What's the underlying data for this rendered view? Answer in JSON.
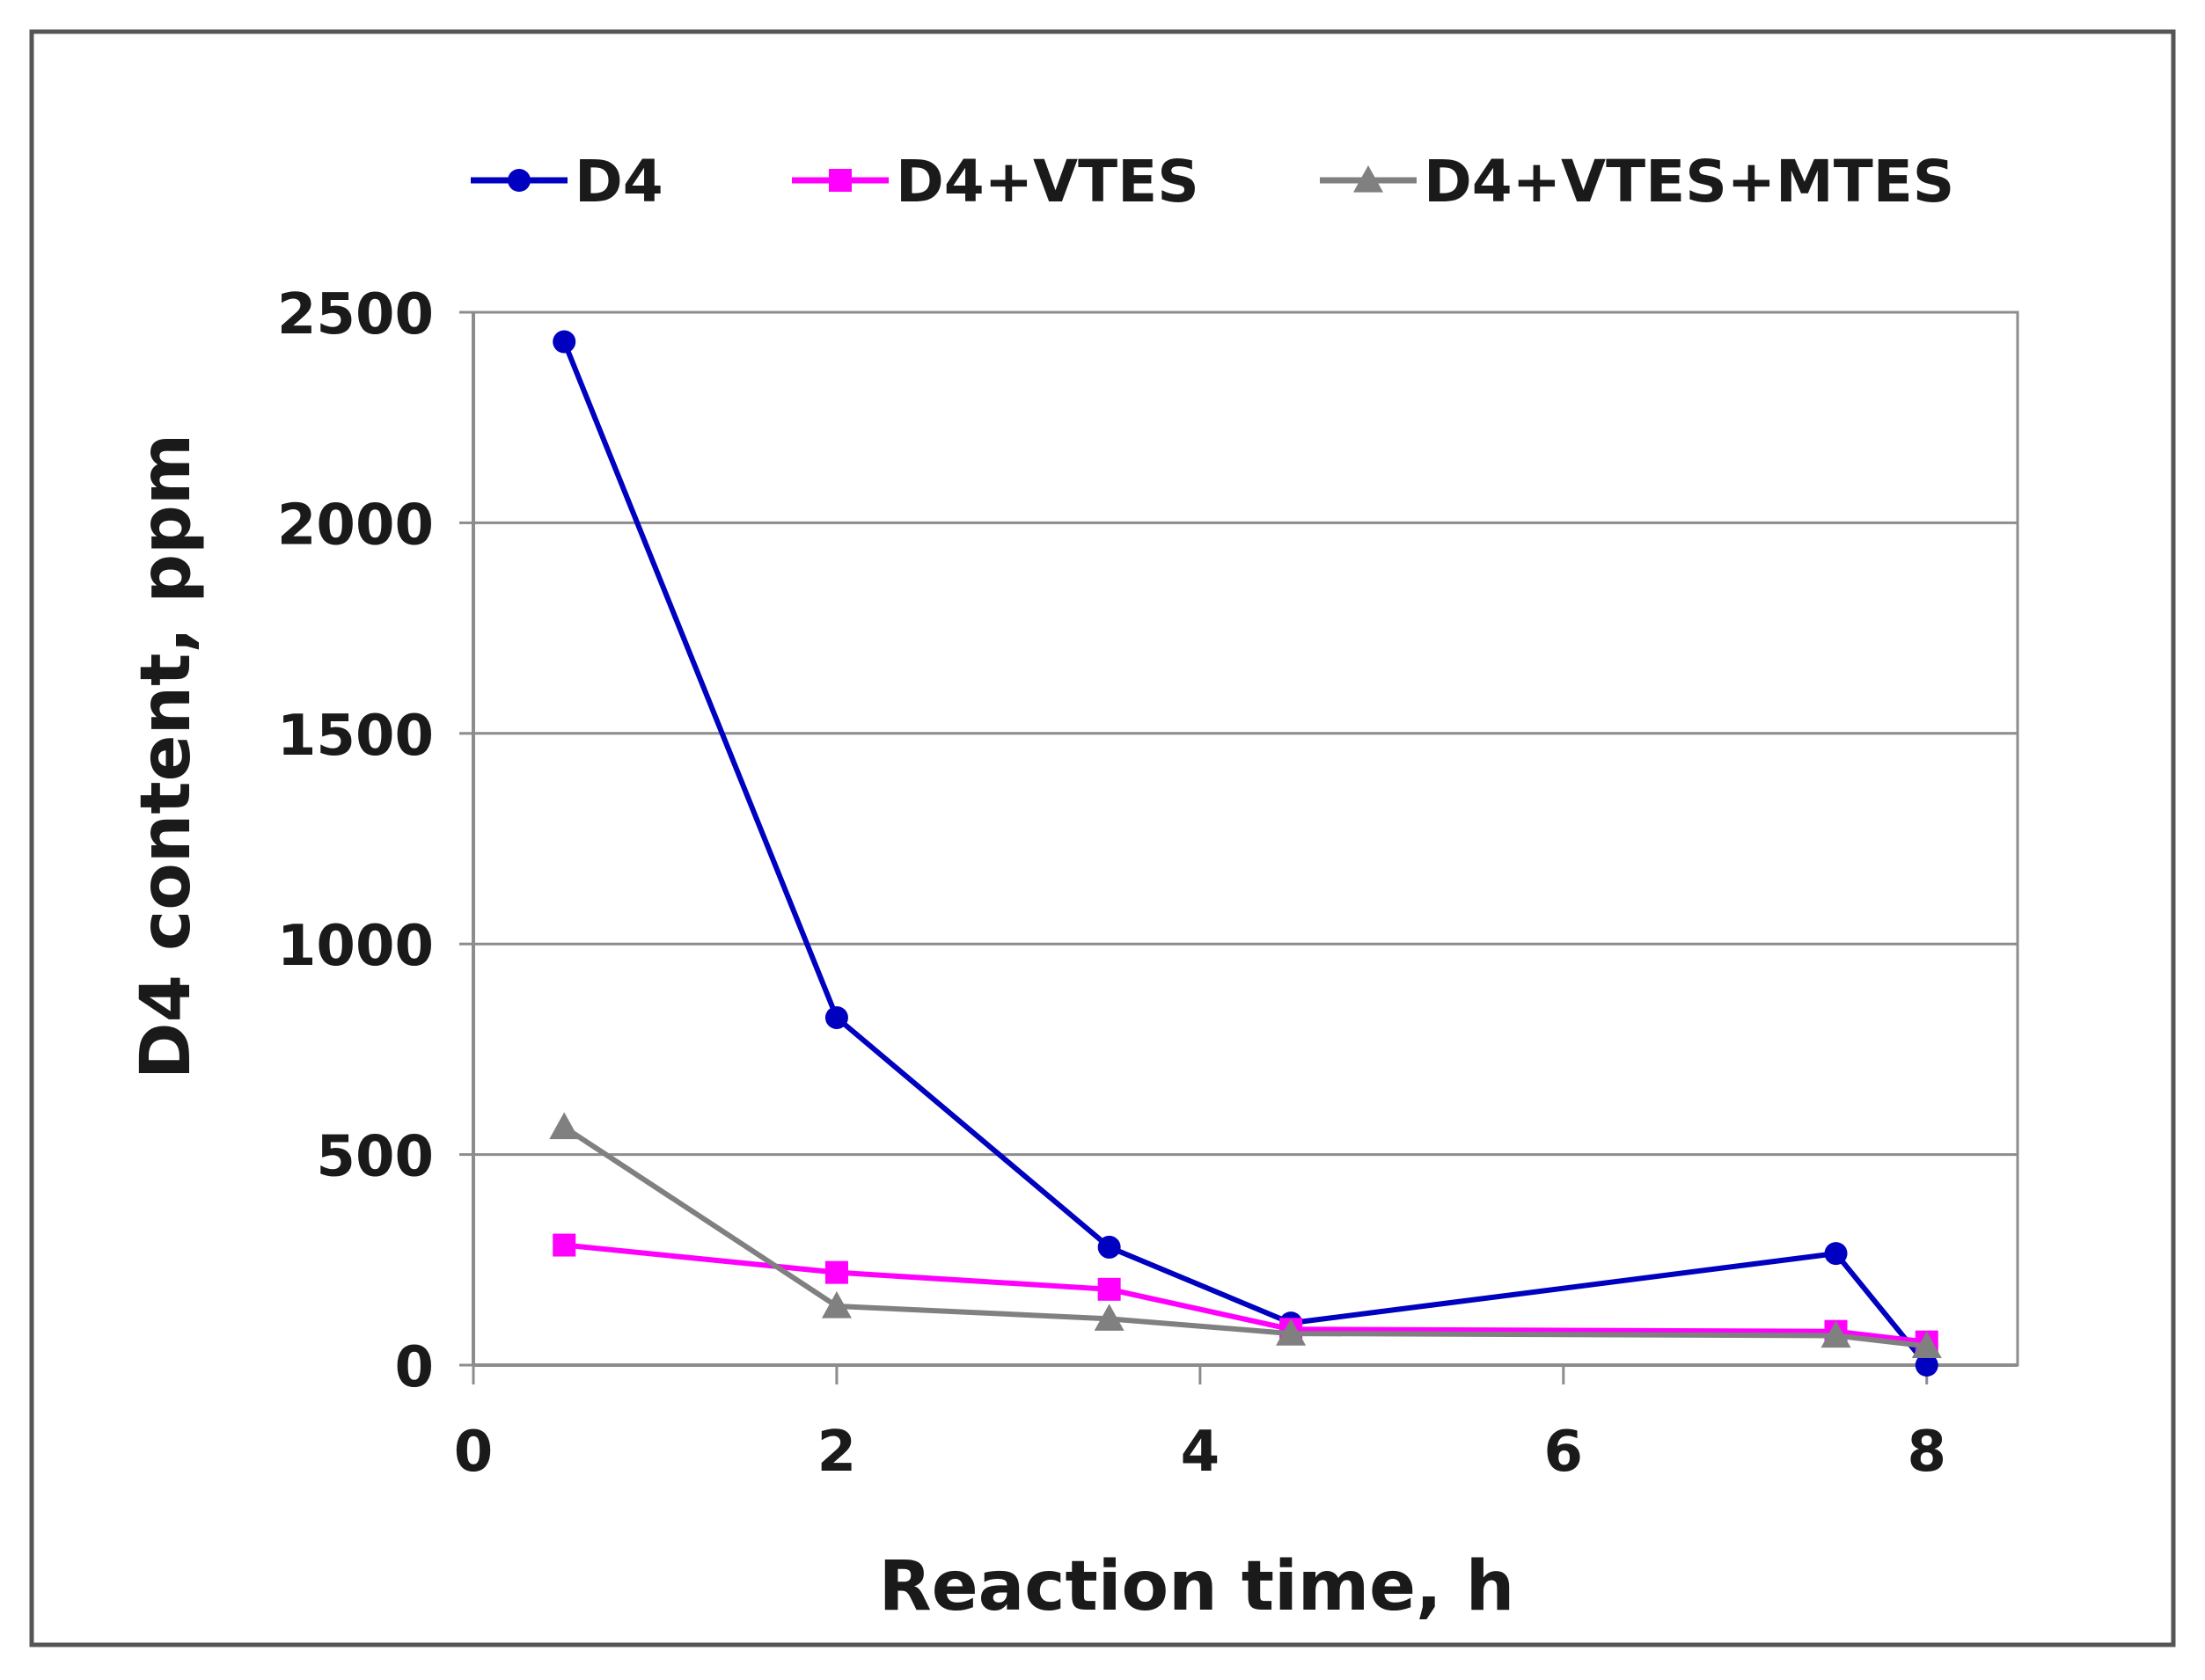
{
  "chart_data": {
    "type": "line",
    "title": "",
    "xlabel": "Reaction time, h",
    "ylabel": "D4 content, ppm",
    "xlim": [
      0,
      8.5
    ],
    "ylim": [
      0,
      2500
    ],
    "xticks": [
      0,
      2,
      4,
      6,
      8
    ],
    "yticks": [
      0,
      500,
      1000,
      1500,
      2000,
      2500
    ],
    "grid": "horizontal",
    "legend_position": "top",
    "series": [
      {
        "name": "D4",
        "color": "#0000c0",
        "marker": "circle",
        "x": [
          0.5,
          2,
          3.5,
          4.5,
          7.5,
          8
        ],
        "y": [
          2430,
          825,
          280,
          100,
          265,
          0
        ]
      },
      {
        "name": "D4+VTES",
        "color": "#ff00ff",
        "marker": "square",
        "x": [
          0.5,
          2,
          3.5,
          4.5,
          7.5,
          8
        ],
        "y": [
          285,
          220,
          180,
          85,
          80,
          55
        ]
      },
      {
        "name": "D4+VTES+MTES",
        "color": "#808080",
        "marker": "triangle",
        "x": [
          0.5,
          2,
          3.5,
          4.5,
          7.5,
          8
        ],
        "y": [
          565,
          140,
          110,
          75,
          70,
          45
        ]
      }
    ]
  }
}
